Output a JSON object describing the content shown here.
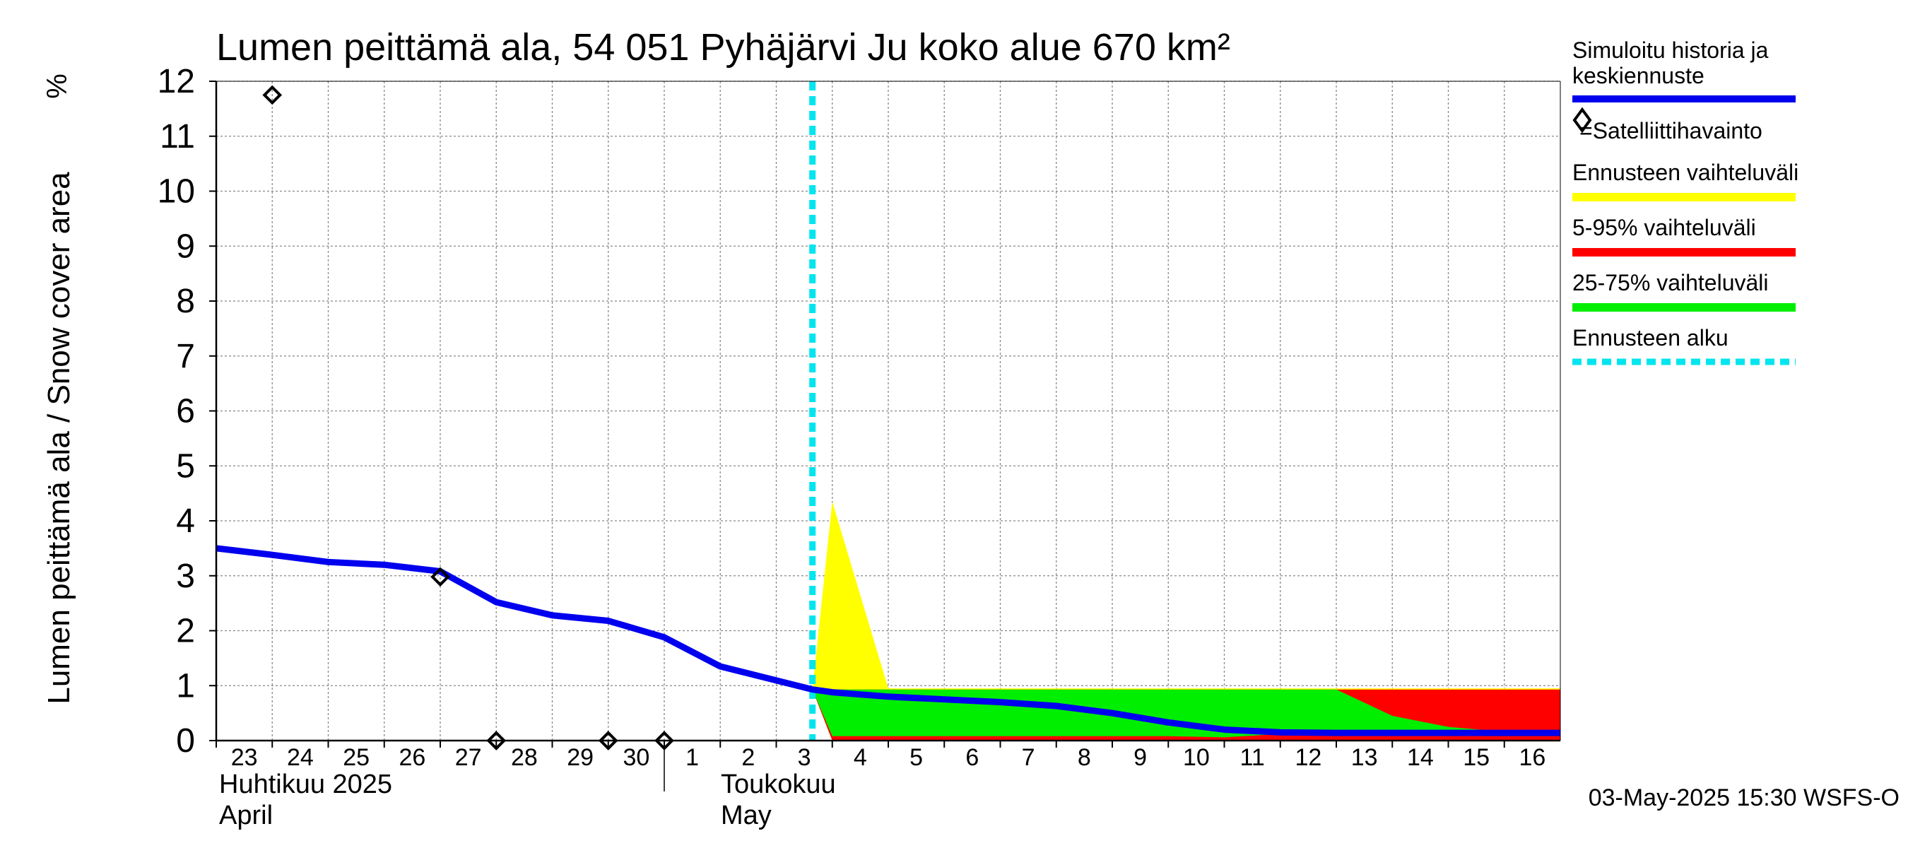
{
  "chart_data": {
    "type": "area",
    "title": "Lumen peittämä ala, 54 051 Pyhäjärvi Ju koko alue 670 km²",
    "ylabel": "Lumen peittämä ala / Snow cover area",
    "yunit": "%",
    "ylim": [
      0,
      12
    ],
    "yticks": [
      0,
      1,
      2,
      3,
      4,
      5,
      6,
      7,
      8,
      9,
      10,
      11,
      12
    ],
    "x_start": "2025-04-23",
    "x_end": "2025-05-17",
    "x_tick_labels": [
      "23",
      "24",
      "25",
      "26",
      "27",
      "28",
      "29",
      "30",
      "1",
      "2",
      "3",
      "4",
      "5",
      "6",
      "7",
      "8",
      "9",
      "10",
      "11",
      "12",
      "13",
      "14",
      "15",
      "16"
    ],
    "month_labels": [
      {
        "fi": "Huhtikuu  2025",
        "en": "April",
        "date": "2025-04-23"
      },
      {
        "fi": "Toukokuu",
        "en": "May",
        "date": "2025-05-01"
      }
    ],
    "grid": true,
    "legend_position": "right",
    "forecast_start": "2025-05-03T15:30",
    "timestamp": "03-May-2025 15:30 WSFS-O",
    "series": [
      {
        "name": "Simuloitu historia ja keskiennuste",
        "kind": "line",
        "color": "#0000ee",
        "points": [
          [
            "2025-04-23",
            3.5
          ],
          [
            "2025-04-24",
            3.38
          ],
          [
            "2025-04-25",
            3.25
          ],
          [
            "2025-04-26",
            3.2
          ],
          [
            "2025-04-27",
            3.08
          ],
          [
            "2025-04-28",
            2.52
          ],
          [
            "2025-04-29",
            2.28
          ],
          [
            "2025-04-30",
            2.18
          ],
          [
            "2025-05-01",
            1.88
          ],
          [
            "2025-05-02",
            1.35
          ],
          [
            "2025-05-03T15:30",
            0.93
          ],
          [
            "2025-05-04",
            0.88
          ],
          [
            "2025-05-05",
            0.8
          ],
          [
            "2025-05-06",
            0.75
          ],
          [
            "2025-05-07",
            0.7
          ],
          [
            "2025-05-08",
            0.63
          ],
          [
            "2025-05-09",
            0.5
          ],
          [
            "2025-05-10",
            0.33
          ],
          [
            "2025-05-11",
            0.2
          ],
          [
            "2025-05-12",
            0.15
          ],
          [
            "2025-05-13",
            0.14
          ],
          [
            "2025-05-14",
            0.14
          ],
          [
            "2025-05-15",
            0.14
          ],
          [
            "2025-05-16",
            0.14
          ],
          [
            "2025-05-17",
            0.14
          ]
        ]
      },
      {
        "name": "=Satelliittihavainto",
        "kind": "markers",
        "color": "#000000",
        "points": [
          [
            "2025-04-24",
            11.75
          ],
          [
            "2025-04-27",
            2.98
          ],
          [
            "2025-04-28",
            0.0
          ],
          [
            "2025-04-30",
            0.0
          ],
          [
            "2025-05-01",
            0.0
          ]
        ]
      },
      {
        "name": "Ennusteen vaihteluväli",
        "kind": "band",
        "color": "#ffff00",
        "upper": [
          [
            "2025-05-03T15:30",
            0.93
          ],
          [
            "2025-05-04",
            4.35
          ],
          [
            "2025-05-05",
            0.95
          ],
          [
            "2025-05-17",
            0.95
          ]
        ],
        "lower": [
          [
            "2025-05-03T15:30",
            0.93
          ],
          [
            "2025-05-04",
            0.0
          ],
          [
            "2025-05-17",
            0.0
          ]
        ]
      },
      {
        "name": "5-95% vaihteluväli",
        "kind": "band",
        "color": "#ff0000",
        "upper": [
          [
            "2025-05-03T15:30",
            0.93
          ],
          [
            "2025-05-04",
            0.93
          ],
          [
            "2025-05-17",
            0.93
          ]
        ],
        "lower": [
          [
            "2025-05-03T15:30",
            0.93
          ],
          [
            "2025-05-04",
            0.0
          ],
          [
            "2025-05-17",
            0.0
          ]
        ]
      },
      {
        "name": "25-75% vaihteluväli",
        "kind": "band",
        "color": "#00ee00",
        "upper": [
          [
            "2025-05-03T15:30",
            0.93
          ],
          [
            "2025-05-04",
            0.93
          ],
          [
            "2025-05-13",
            0.93
          ],
          [
            "2025-05-14",
            0.45
          ],
          [
            "2025-05-15",
            0.25
          ],
          [
            "2025-05-16",
            0.16
          ],
          [
            "2025-05-17",
            0.14
          ]
        ],
        "lower": [
          [
            "2025-05-03T15:30",
            0.93
          ],
          [
            "2025-05-04",
            0.08
          ],
          [
            "2025-05-10",
            0.08
          ],
          [
            "2025-05-11",
            0.06
          ],
          [
            "2025-05-12",
            0.12
          ],
          [
            "2025-05-13",
            0.13
          ],
          [
            "2025-05-17",
            0.13
          ]
        ]
      },
      {
        "name": "Ennusteen alku",
        "kind": "vline",
        "color": "#00e5ee"
      }
    ]
  }
}
